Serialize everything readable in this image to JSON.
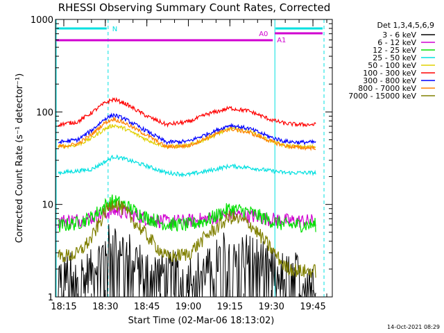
{
  "chart_data": {
    "type": "line",
    "title": "RHESSI Observing Summary Count Rates, Corrected",
    "xlabel": "Start Time (02-Mar-06 18:13:02)",
    "ylabel": "Corrected Count Rate (s⁻¹ detector⁻¹)",
    "y_scale": "log",
    "ylim": [
      1,
      1000
    ],
    "xlim": [
      "18:12",
      "19:52"
    ],
    "x_ticks": [
      "18:15",
      "18:30",
      "18:45",
      "19:00",
      "19:15",
      "19:30",
      "19:45"
    ],
    "y_ticks": [
      "1",
      "10",
      "100",
      "1000"
    ],
    "legend_title": "Det 1,3,4,5,6,9",
    "legend_position": "right",
    "grid": false,
    "time_points": [
      "18:13",
      "18:20",
      "18:25",
      "18:30",
      "18:33",
      "18:37",
      "18:45",
      "18:52",
      "19:00",
      "19:07",
      "19:15",
      "19:22",
      "19:30",
      "19:35",
      "19:40",
      "19:46"
    ],
    "series": [
      {
        "name": "3 - 6 keV",
        "color": "#000000",
        "values": [
          1.8,
          1.8,
          1.9,
          3.3,
          4.2,
          3.3,
          2.0,
          1.8,
          1.8,
          2.0,
          3.5,
          3.0,
          2.0,
          1.8,
          1.8,
          1.8
        ]
      },
      {
        "name": "6 - 12 keV",
        "color": "#d000d0",
        "values": [
          6.6,
          6.8,
          7.2,
          8.0,
          8.6,
          8.2,
          7.0,
          6.5,
          6.6,
          7.0,
          7.8,
          7.5,
          6.9,
          6.7,
          6.6,
          6.6
        ]
      },
      {
        "name": "12 - 25 keV",
        "color": "#00e000",
        "values": [
          5.8,
          6.3,
          7.2,
          9.8,
          11.0,
          9.8,
          7.2,
          6.1,
          6.0,
          6.8,
          9.0,
          8.3,
          6.6,
          6.0,
          6.0,
          6.0
        ]
      },
      {
        "name": "25 - 50 keV",
        "color": "#00e0e0",
        "values": [
          22,
          23,
          24,
          29,
          33,
          31,
          26,
          22,
          21,
          23,
          26,
          25,
          23,
          22,
          22,
          22
        ]
      },
      {
        "name": "50 - 100 keV",
        "color": "#e0d000",
        "values": [
          42,
          44,
          52,
          66,
          72,
          66,
          50,
          42,
          43,
          52,
          66,
          62,
          48,
          43,
          42,
          42
        ]
      },
      {
        "name": "100 - 300 keV",
        "color": "#ff0000",
        "values": [
          73,
          78,
          98,
          126,
          137,
          124,
          90,
          73,
          78,
          95,
          110,
          102,
          82,
          75,
          73,
          73
        ]
      },
      {
        "name": "300 - 800 keV",
        "color": "#0000ff",
        "values": [
          47,
          50,
          63,
          85,
          93,
          84,
          62,
          47,
          48,
          58,
          72,
          66,
          53,
          48,
          47,
          47
        ]
      },
      {
        "name": "800 - 7000 keV",
        "color": "#ff8000",
        "values": [
          42,
          45,
          57,
          77,
          84,
          76,
          56,
          42,
          43,
          53,
          66,
          60,
          48,
          43,
          41,
          41
        ]
      },
      {
        "name": "7000 - 15000 keV",
        "color": "#808000",
        "values": [
          2.7,
          2.9,
          4.3,
          8.3,
          10.7,
          8.5,
          4.6,
          2.7,
          2.9,
          4.7,
          7.3,
          6.3,
          3.3,
          2.1,
          1.9,
          1.9
        ]
      }
    ],
    "annotations": [
      {
        "label": "N",
        "type": "night",
        "color": "#00e0e0",
        "start": "18:13",
        "end": "18:31"
      },
      {
        "label": "N",
        "type": "night",
        "color": "#00e0e0",
        "start": "19:31",
        "end": "19:49"
      },
      {
        "label": "A0",
        "type": "attenuator",
        "color": "#d000d0",
        "start": "18:13",
        "end": "19:31"
      },
      {
        "label": "A1",
        "type": "attenuator",
        "color": "#d000d0",
        "start": "19:31",
        "end": "19:49"
      }
    ],
    "timestamp": "14-Oct-2021 08:29"
  }
}
